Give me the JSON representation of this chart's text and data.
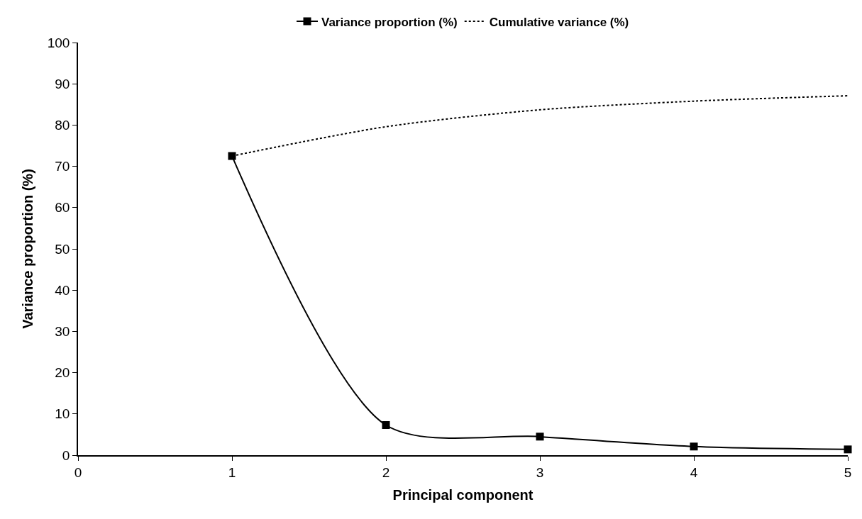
{
  "chart_data": {
    "type": "line",
    "xlabel": "Principal component",
    "ylabel": "Variance proportion (%)",
    "x": [
      1,
      2,
      3,
      4,
      5
    ],
    "series": [
      {
        "name": "Variance proportion (%)",
        "color": "#000000",
        "values": [
          72.5,
          7.3,
          4.5,
          2.1,
          1.4
        ],
        "marker": "square",
        "line_style": "solid"
      },
      {
        "name": "Cumulative variance (%)",
        "color": "#000000",
        "values": [
          72.5,
          79.6,
          83.7,
          85.8,
          87.1
        ],
        "marker": "none",
        "line_style": "dotted"
      }
    ],
    "xlim": [
      0,
      5
    ],
    "xticks": [
      0,
      1,
      2,
      3,
      4,
      5
    ],
    "ylim": [
      0,
      100
    ],
    "yticks": [
      0,
      10,
      20,
      30,
      40,
      50,
      60,
      70,
      80,
      90,
      100
    ],
    "legend": "top"
  }
}
